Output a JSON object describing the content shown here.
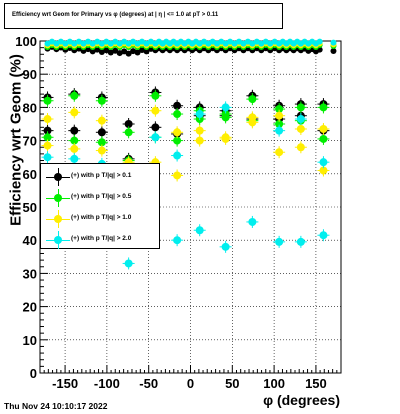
{
  "title": "Efficiency wrt Geom for Primary vs φ (degrees) at | η | <= 1.0 at pT > 0.11",
  "timestamp": "Thu Nov 24 10:10:17 2022",
  "chart_data": {
    "type": "scatter",
    "xlabel": "φ (degrees)",
    "ylabel": "Efficiency wrt Geom (%)",
    "xlim": [
      -180,
      180
    ],
    "ylim": [
      0,
      100
    ],
    "x_ticks": [
      -150,
      -100,
      -50,
      0,
      50,
      100,
      150
    ],
    "y_ticks": [
      0,
      10,
      20,
      30,
      40,
      50,
      60,
      70,
      80,
      90,
      100
    ],
    "grid": true,
    "legend_placement": "left-middle",
    "series": [
      {
        "name": "(+) with p T/|q| > 0.1",
        "color": "#000000",
        "points": [
          [
            -171,
            83
          ],
          [
            -171,
            73
          ],
          [
            -139,
            84
          ],
          [
            -139,
            73
          ],
          [
            -106,
            83
          ],
          [
            -106,
            72.5
          ],
          [
            -74,
            75
          ],
          [
            -74,
            64.5
          ],
          [
            -42,
            84.5
          ],
          [
            -42,
            74
          ],
          [
            -16,
            80.5
          ],
          [
            -16,
            72
          ],
          [
            11,
            80
          ],
          [
            11,
            77.5
          ],
          [
            42,
            79
          ],
          [
            42,
            77.5
          ],
          [
            74,
            83.5
          ],
          [
            74,
            76.5
          ],
          [
            106,
            80.5
          ],
          [
            106,
            76.5
          ],
          [
            132,
            81
          ],
          [
            132,
            77.5
          ],
          [
            159,
            81
          ],
          [
            159,
            73
          ]
        ],
        "dense": [
          [
            -171,
            98
          ],
          [
            -139,
            97.5
          ],
          [
            -106,
            97
          ],
          [
            -74,
            96.5
          ],
          [
            -42,
            97.5
          ],
          [
            -16,
            97.5
          ],
          [
            11,
            97.5
          ],
          [
            42,
            97.5
          ],
          [
            74,
            97.5
          ],
          [
            106,
            97.5
          ],
          [
            132,
            97.5
          ],
          [
            159,
            97
          ]
        ]
      },
      {
        "name": "(+) with p T/|q| > 0.5",
        "color": "#00ee00",
        "points": [
          [
            -171,
            82
          ],
          [
            -171,
            71
          ],
          [
            -139,
            83.5
          ],
          [
            -139,
            70
          ],
          [
            -106,
            82
          ],
          [
            -106,
            69.5
          ],
          [
            -74,
            72.5
          ],
          [
            -74,
            64
          ],
          [
            -42,
            83.5
          ],
          [
            -42,
            71
          ],
          [
            -16,
            78
          ],
          [
            -16,
            70
          ],
          [
            11,
            79
          ],
          [
            11,
            76.5
          ],
          [
            42,
            78
          ],
          [
            42,
            77
          ],
          [
            74,
            82.5
          ],
          [
            74,
            76
          ],
          [
            106,
            79.5
          ],
          [
            106,
            75
          ],
          [
            132,
            80
          ],
          [
            132,
            76
          ],
          [
            159,
            80
          ],
          [
            159,
            70.5
          ]
        ],
        "dense": [
          [
            -171,
            98.5
          ],
          [
            -139,
            98.5
          ],
          [
            -106,
            98.5
          ],
          [
            -74,
            98.5
          ],
          [
            -42,
            98.5
          ],
          [
            -16,
            98.5
          ],
          [
            11,
            98.5
          ],
          [
            42,
            98.5
          ],
          [
            74,
            98.5
          ],
          [
            106,
            98.5
          ],
          [
            132,
            98.5
          ],
          [
            159,
            98.5
          ]
        ]
      },
      {
        "name": "(+) with p T/|q| > 1.0",
        "color": "#ffee00",
        "points": [
          [
            -171,
            76.5
          ],
          [
            -171,
            68.5
          ],
          [
            -139,
            78.5
          ],
          [
            -139,
            67.5
          ],
          [
            -106,
            76
          ],
          [
            -106,
            67
          ],
          [
            -74,
            63.5
          ],
          [
            -74,
            63
          ],
          [
            -42,
            79
          ],
          [
            -42,
            63.5
          ],
          [
            -16,
            72.5
          ],
          [
            -16,
            59.5
          ],
          [
            11,
            73
          ],
          [
            11,
            70
          ],
          [
            42,
            71
          ],
          [
            42,
            70.5
          ],
          [
            74,
            77
          ],
          [
            74,
            75.5
          ],
          [
            106,
            77.5
          ],
          [
            106,
            66.5
          ],
          [
            132,
            73.5
          ],
          [
            132,
            68
          ],
          [
            159,
            73.5
          ],
          [
            159,
            61
          ]
        ],
        "dense": [
          [
            -171,
            99
          ],
          [
            -139,
            99
          ],
          [
            -106,
            99
          ],
          [
            -74,
            99
          ],
          [
            -42,
            99
          ],
          [
            -16,
            99
          ],
          [
            11,
            99
          ],
          [
            42,
            99
          ],
          [
            74,
            99
          ],
          [
            106,
            99
          ],
          [
            132,
            99
          ],
          [
            159,
            99
          ]
        ]
      },
      {
        "name": "(+) with p T/|q| > 2.0",
        "color": "#00eeee",
        "points": [
          [
            -171,
            65
          ],
          [
            -139,
            64.5
          ],
          [
            -106,
            63
          ],
          [
            -74,
            33
          ],
          [
            -42,
            71
          ],
          [
            -16,
            65.5
          ],
          [
            -16,
            40
          ],
          [
            11,
            78
          ],
          [
            11,
            43
          ],
          [
            42,
            80
          ],
          [
            42,
            38
          ],
          [
            74,
            45.5
          ],
          [
            106,
            73
          ],
          [
            106,
            39.5
          ],
          [
            132,
            76.5
          ],
          [
            132,
            39.5
          ],
          [
            159,
            63.5
          ],
          [
            159,
            41.5
          ]
        ],
        "dense": [
          [
            -171,
            99.5
          ],
          [
            -139,
            99.5
          ],
          [
            -106,
            99.5
          ],
          [
            -74,
            99.5
          ],
          [
            -42,
            99.5
          ],
          [
            -16,
            99.5
          ],
          [
            11,
            99.5
          ],
          [
            42,
            99.5
          ],
          [
            74,
            99.5
          ],
          [
            106,
            99.5
          ],
          [
            132,
            99.5
          ],
          [
            159,
            99.5
          ]
        ]
      }
    ]
  }
}
